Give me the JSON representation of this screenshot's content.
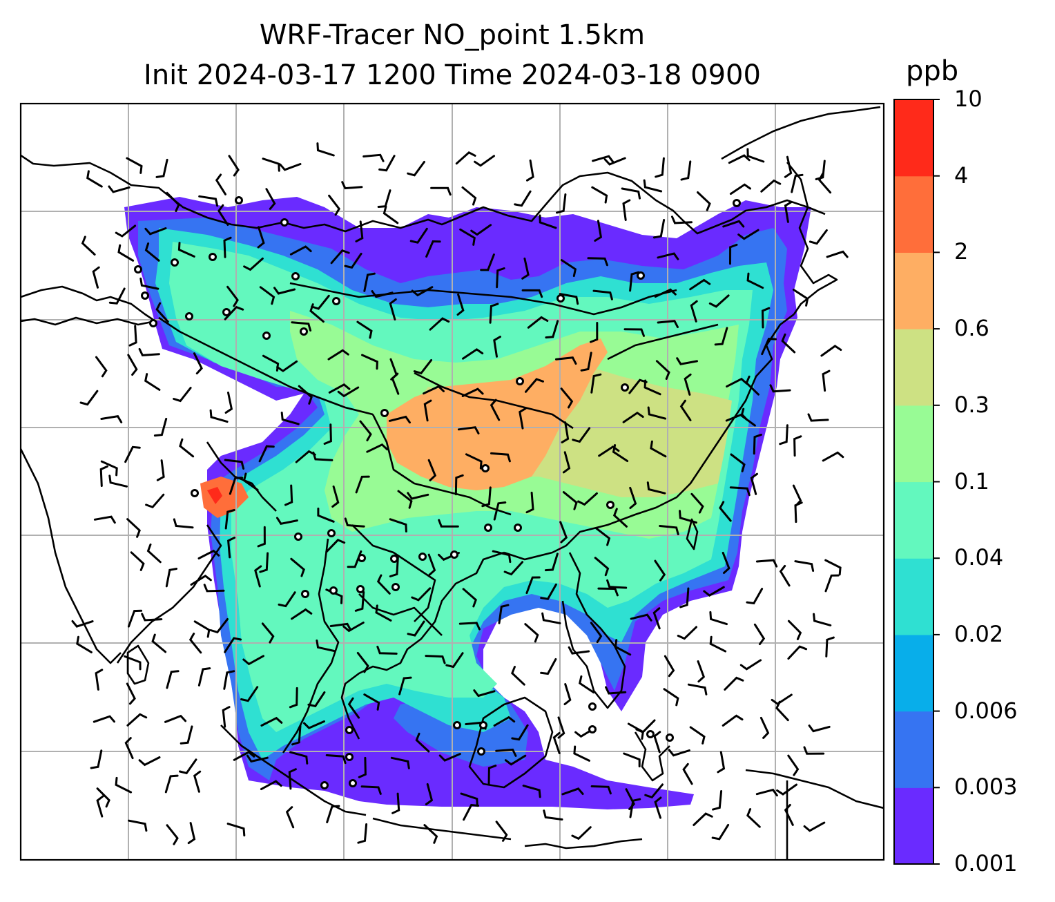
{
  "title": {
    "line1": "WRF-Tracer NO_point 1.5km",
    "line2": "Init 2024-03-17 1200 Time 2024-03-18 0900"
  },
  "colorbar": {
    "unit": "ppb",
    "ticks": [
      "0.001",
      "0.003",
      "0.006",
      "0.02",
      "0.04",
      "0.1",
      "0.3",
      "0.6",
      "2",
      "4",
      "10"
    ],
    "colors": [
      "#6a2bff",
      "#3674f2",
      "#08aeea",
      "#2fe0d2",
      "#63f8be",
      "#98fb95",
      "#cde183",
      "#feae63",
      "#ff6e3a",
      "#ff2a1a"
    ]
  },
  "map": {
    "gridlines": true,
    "grid_color": "#b0b0b0",
    "coastline_color": "#000000",
    "features": [
      "coastlines",
      "country-borders",
      "wind-barbs",
      "calm-wind-circles",
      "tracer-concentration-fill"
    ]
  }
}
